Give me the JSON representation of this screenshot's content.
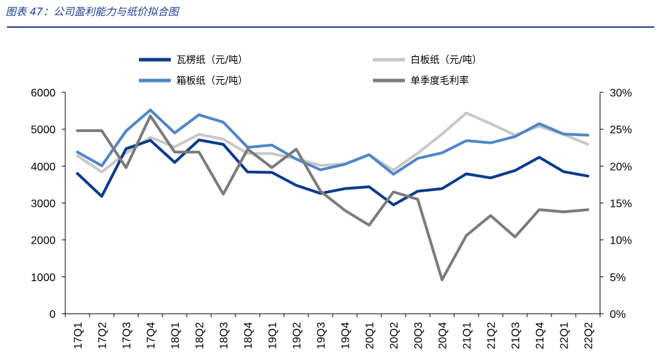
{
  "figure": {
    "title": "图表 47：公司盈利能力与纸价拟合图"
  },
  "chart_data": {
    "type": "line",
    "categories": [
      "17Q1",
      "17Q2",
      "17Q3",
      "17Q4",
      "18Q1",
      "18Q2",
      "18Q3",
      "18Q4",
      "19Q1",
      "19Q2",
      "19Q3",
      "19Q4",
      "20Q1",
      "20Q2",
      "20Q3",
      "20Q4",
      "21Q1",
      "21Q2",
      "21Q3",
      "21Q4",
      "22Q1",
      "22Q2"
    ],
    "y_left": {
      "min": 0,
      "max": 6000,
      "ticks": [
        "0",
        "1000",
        "2000",
        "3000",
        "4000",
        "5000",
        "6000"
      ]
    },
    "y_right": {
      "min": 0,
      "max": 30,
      "ticks": [
        "0%",
        "5%",
        "10%",
        "15%",
        "20%",
        "25%",
        "30%"
      ]
    },
    "grid": false,
    "legend_position": "top",
    "series": [
      {
        "name": "瓦楞纸（元/吨）",
        "axis": "left",
        "color": "#0b3a8a",
        "values": [
          3800,
          3180,
          4470,
          4700,
          4100,
          4710,
          4590,
          3840,
          3830,
          3480,
          3260,
          3390,
          3440,
          2950,
          3320,
          3390,
          3790,
          3680,
          3880,
          4240,
          3850,
          3730
        ]
      },
      {
        "name": "白板纸（元/吨）",
        "axis": "left",
        "color": "#c8c8c8",
        "values": [
          4280,
          3840,
          4350,
          4780,
          4520,
          4860,
          4730,
          4340,
          4340,
          4200,
          4020,
          4060,
          4310,
          3890,
          4350,
          4870,
          5440,
          5150,
          4840,
          5080,
          4860,
          4590
        ]
      },
      {
        "name": "箱板纸（元/吨）",
        "axis": "left",
        "color": "#4f86c6",
        "values": [
          4380,
          4010,
          4950,
          5520,
          4900,
          5390,
          5190,
          4510,
          4570,
          4190,
          3900,
          4050,
          4310,
          3780,
          4210,
          4360,
          4690,
          4630,
          4800,
          5150,
          4870,
          4840
        ]
      },
      {
        "name": "单季度毛利率",
        "axis": "right",
        "color": "#7b7b7b",
        "values": [
          24.8,
          24.8,
          19.8,
          26.8,
          21.9,
          21.9,
          16.2,
          22.3,
          19.8,
          22.3,
          16.6,
          14.0,
          12.0,
          16.5,
          15.5,
          4.6,
          10.6,
          13.3,
          10.4,
          14.1,
          13.8,
          14.1
        ]
      }
    ]
  }
}
